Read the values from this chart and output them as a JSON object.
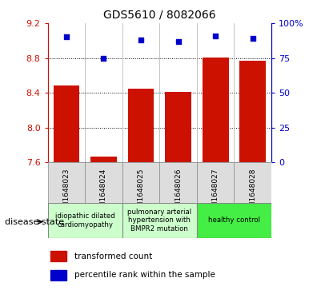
{
  "title": "GDS5610 / 8082066",
  "samples": [
    "GSM1648023",
    "GSM1648024",
    "GSM1648025",
    "GSM1648026",
    "GSM1648027",
    "GSM1648028"
  ],
  "bar_values": [
    8.48,
    7.67,
    8.45,
    8.41,
    8.81,
    8.77
  ],
  "dot_values": [
    90,
    75,
    88,
    87,
    91,
    89
  ],
  "ylim_left": [
    7.6,
    9.2
  ],
  "ylim_right": [
    0,
    100
  ],
  "yticks_left": [
    7.6,
    8.0,
    8.4,
    8.8,
    9.2
  ],
  "yticks_right": [
    0,
    25,
    50,
    75,
    100
  ],
  "bar_color": "#cc1100",
  "dot_color": "#0000cc",
  "bar_width": 0.7,
  "disease_groups": [
    {
      "label": "idiopathic dilated\ncardiomyopathy",
      "span": [
        0,
        2
      ],
      "color": "#ccffcc"
    },
    {
      "label": "pulmonary arterial\nhypertension with\nBMPR2 mutation",
      "span": [
        2,
        4
      ],
      "color": "#ccffcc"
    },
    {
      "label": "healthy control",
      "span": [
        4,
        6
      ],
      "color": "#44ee44"
    }
  ],
  "legend_bar_label": "transformed count",
  "legend_dot_label": "percentile rank within the sample",
  "disease_state_label": "disease state",
  "right_ytick_labels": [
    "0",
    "25",
    "50",
    "75",
    "100%"
  ],
  "ymin": 7.6
}
